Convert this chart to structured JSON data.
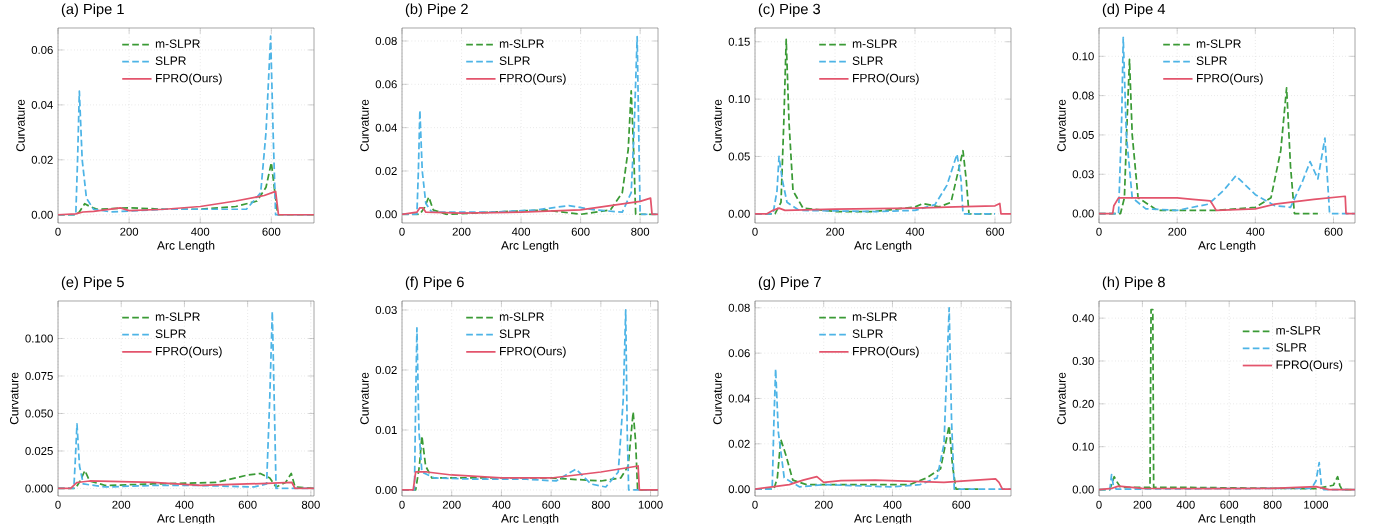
{
  "chart_data": [
    {
      "type": "line",
      "title": "(a) Pipe 1",
      "xlabel": "Arc Length",
      "ylabel": "Curvature",
      "grid": true,
      "legend": "top",
      "xlim": [
        0,
        720
      ],
      "xticks": [
        0,
        200,
        400,
        600
      ],
      "ylim": [
        -0.003,
        0.068
      ],
      "yticks": [
        {
          "value": 0,
          "label": "0.00"
        },
        {
          "value": 0.02,
          "label": "0.02"
        },
        {
          "value": 0.04,
          "label": "0.04"
        },
        {
          "value": 0.06,
          "label": "0.06"
        }
      ],
      "series": [
        {
          "name": "m-SLPR",
          "color": "#3a9a35",
          "line_style": "dashed",
          "x": [
            0,
            50,
            60,
            75,
            90,
            110,
            200,
            300,
            400,
            500,
            560,
            585,
            600,
            610,
            618,
            720
          ],
          "values": [
            0,
            0,
            0.001,
            0.004,
            0.003,
            0.002,
            0.0025,
            0.002,
            0.002,
            0.003,
            0.005,
            0.01,
            0.019,
            0.008,
            0,
            0
          ]
        },
        {
          "name": "SLPR",
          "color": "#4db4e6",
          "line_style": "dashed",
          "x": [
            0,
            50,
            55,
            60,
            68,
            80,
            100,
            150,
            300,
            450,
            530,
            570,
            585,
            598,
            605,
            612,
            720
          ],
          "values": [
            0,
            0,
            0.02,
            0.045,
            0.02,
            0.006,
            0.002,
            0.001,
            0.002,
            0.002,
            0.002,
            0.008,
            0.03,
            0.065,
            0.03,
            0,
            0
          ]
        },
        {
          "name": "FPRO(Ours)",
          "color": "#e3546c",
          "line_style": "solid",
          "x": [
            0,
            50,
            70,
            100,
            175,
            200,
            300,
            400,
            500,
            580,
            612,
            620,
            720
          ],
          "values": [
            0,
            0.0003,
            0.001,
            0.0012,
            0.0025,
            0.0015,
            0.002,
            0.003,
            0.005,
            0.007,
            0.0085,
            0,
            0
          ]
        }
      ]
    },
    {
      "type": "line",
      "title": "(b) Pipe 2",
      "xlabel": "Arc Length",
      "ylabel": "Curvature",
      "grid": true,
      "legend": "top",
      "xlim": [
        0,
        860
      ],
      "xticks": [
        0,
        200,
        400,
        600,
        800
      ],
      "ylim": [
        -0.004,
        0.086
      ],
      "yticks": [
        {
          "value": 0,
          "label": "0.00"
        },
        {
          "value": 0.02,
          "label": "0.02"
        },
        {
          "value": 0.04,
          "label": "0.04"
        },
        {
          "value": 0.06,
          "label": "0.06"
        },
        {
          "value": 0.08,
          "label": "0.08"
        }
      ],
      "series": [
        {
          "name": "m-SLPR",
          "color": "#3a9a35",
          "line_style": "dashed",
          "x": [
            0,
            60,
            75,
            90,
            105,
            150,
            300,
            480,
            600,
            700,
            740,
            760,
            770,
            778,
            785,
            860
          ],
          "values": [
            0,
            0,
            0.003,
            0.008,
            0.002,
            0,
            0.001,
            0.002,
            0,
            0.002,
            0.01,
            0.03,
            0.057,
            0.03,
            0,
            0
          ]
        },
        {
          "name": "SLPR",
          "color": "#4db4e6",
          "line_style": "dashed",
          "x": [
            0,
            50,
            55,
            60,
            68,
            80,
            100,
            300,
            450,
            560,
            650,
            740,
            770,
            780,
            790,
            795,
            800,
            860
          ],
          "values": [
            0,
            0,
            0.02,
            0.048,
            0.02,
            0.005,
            0.001,
            0.001,
            0.002,
            0.004,
            0.002,
            0.001,
            0.01,
            0.04,
            0.082,
            0.04,
            0,
            0
          ]
        },
        {
          "name": "FPRO(Ours)",
          "color": "#e3546c",
          "line_style": "solid",
          "x": [
            0,
            50,
            60,
            70,
            80,
            200,
            400,
            600,
            700,
            800,
            835,
            840,
            860
          ],
          "values": [
            0,
            0.001,
            0.003,
            0.003,
            0.001,
            0.0005,
            0.001,
            0.002,
            0.004,
            0.006,
            0.0075,
            0,
            0
          ]
        }
      ]
    },
    {
      "type": "line",
      "title": "(c) Pipe 3",
      "xlabel": "Arc Length",
      "ylabel": "Curvature",
      "grid": true,
      "legend": "top",
      "xlim": [
        0,
        640
      ],
      "xticks": [
        0,
        200,
        400,
        600
      ],
      "ylim": [
        -0.008,
        0.162
      ],
      "yticks": [
        {
          "value": 0,
          "label": "0.00"
        },
        {
          "value": 0.05,
          "label": "0.05"
        },
        {
          "value": 0.1,
          "label": "0.10"
        },
        {
          "value": 0.15,
          "label": "0.15"
        }
      ],
      "series": [
        {
          "name": "m-SLPR",
          "color": "#3a9a35",
          "line_style": "dashed",
          "x": [
            0,
            50,
            65,
            72,
            78,
            85,
            95,
            120,
            200,
            300,
            400,
            420,
            460,
            490,
            510,
            520,
            528,
            535,
            600
          ],
          "values": [
            0,
            0,
            0.01,
            0.08,
            0.152,
            0.08,
            0.02,
            0.005,
            0.002,
            0.002,
            0.006,
            0.009,
            0.006,
            0.01,
            0.04,
            0.055,
            0.03,
            0,
            0
          ]
        },
        {
          "name": "SLPR",
          "color": "#4db4e6",
          "line_style": "dashed",
          "x": [
            0,
            45,
            55,
            60,
            68,
            80,
            110,
            300,
            400,
            450,
            480,
            505,
            515,
            520,
            600
          ],
          "values": [
            0,
            0,
            0.02,
            0.05,
            0.03,
            0.01,
            0.003,
            0.002,
            0.003,
            0.008,
            0.025,
            0.052,
            0.03,
            0,
            0
          ]
        },
        {
          "name": "FPRO(Ours)",
          "color": "#e3546c",
          "line_style": "solid",
          "x": [
            0,
            30,
            45,
            60,
            75,
            200,
            400,
            500,
            600,
            612,
            615,
            640
          ],
          "values": [
            0,
            0,
            0.003,
            0.005,
            0.003,
            0.004,
            0.005,
            0.006,
            0.007,
            0.009,
            0,
            0
          ]
        }
      ]
    },
    {
      "type": "line",
      "title": "(d) Pipe 4",
      "xlabel": "Arc Length",
      "ylabel": "Curvature",
      "grid": true,
      "legend": "top",
      "xlim": [
        0,
        655
      ],
      "xticks": [
        0,
        200,
        400,
        600
      ],
      "ylim": [
        -0.006,
        0.118
      ],
      "yticks": [
        {
          "value": 0,
          "label": "0.00"
        },
        {
          "value": 0.025,
          "label": "0.03"
        },
        {
          "value": 0.05,
          "label": "0.05"
        },
        {
          "value": 0.075,
          "label": "0.08"
        },
        {
          "value": 0.1,
          "label": "0.10"
        }
      ],
      "series": [
        {
          "name": "m-SLPR",
          "color": "#3a9a35",
          "line_style": "dashed",
          "x": [
            0,
            55,
            65,
            72,
            78,
            85,
            100,
            150,
            300,
            400,
            440,
            465,
            480,
            490,
            500,
            560
          ],
          "values": [
            0,
            0,
            0.01,
            0.06,
            0.098,
            0.05,
            0.01,
            0.002,
            0.002,
            0.004,
            0.01,
            0.04,
            0.08,
            0.03,
            0,
            0
          ]
        },
        {
          "name": "SLPR",
          "color": "#4db4e6",
          "line_style": "dashed",
          "x": [
            0,
            50,
            58,
            62,
            70,
            85,
            120,
            200,
            280,
            320,
            350,
            400,
            450,
            490,
            520,
            540,
            560,
            578,
            590,
            655
          ],
          "values": [
            0,
            0,
            0.06,
            0.112,
            0.05,
            0.01,
            0.003,
            0.002,
            0.006,
            0.015,
            0.024,
            0.012,
            0.005,
            0.004,
            0.02,
            0.033,
            0.022,
            0.048,
            0,
            0
          ]
        },
        {
          "name": "FPRO(Ours)",
          "color": "#e3546c",
          "line_style": "solid",
          "x": [
            0,
            35,
            38,
            50,
            200,
            240,
            285,
            300,
            400,
            450,
            550,
            630,
            632,
            655
          ],
          "values": [
            0,
            0,
            0.005,
            0.01,
            0.01,
            0.009,
            0.008,
            0.002,
            0.003,
            0.006,
            0.009,
            0.011,
            0,
            0
          ]
        }
      ]
    },
    {
      "type": "line",
      "title": "(e) Pipe 5",
      "xlabel": "Arc Length",
      "ylabel": "Curvature",
      "grid": true,
      "legend": "top",
      "xlim": [
        0,
        810
      ],
      "xticks": [
        0,
        200,
        400,
        600,
        800
      ],
      "ylim": [
        -0.005,
        0.125
      ],
      "yticks": [
        {
          "value": 0,
          "label": "0.000"
        },
        {
          "value": 0.025,
          "label": "0.025"
        },
        {
          "value": 0.05,
          "label": "0.050"
        },
        {
          "value": 0.075,
          "label": "0.075"
        },
        {
          "value": 0.1,
          "label": "0.100"
        }
      ],
      "series": [
        {
          "name": "m-SLPR",
          "color": "#3a9a35",
          "line_style": "dashed",
          "x": [
            0,
            55,
            70,
            85,
            100,
            150,
            300,
            500,
            600,
            640,
            670,
            690,
            720,
            738,
            750,
            810
          ],
          "values": [
            0,
            0,
            0.005,
            0.012,
            0.005,
            0.002,
            0.003,
            0.004,
            0.009,
            0.01,
            0.007,
            0.001,
            0.004,
            0.01,
            0.001,
            0
          ]
        },
        {
          "name": "SLPR",
          "color": "#4db4e6",
          "line_style": "dashed",
          "x": [
            0,
            50,
            55,
            60,
            68,
            80,
            150,
            300,
            450,
            620,
            660,
            670,
            678,
            685,
            690,
            810
          ],
          "values": [
            0,
            0,
            0.02,
            0.043,
            0.015,
            0.003,
            0.001,
            0.002,
            0.002,
            0.001,
            0.003,
            0.06,
            0.118,
            0.05,
            0,
            0
          ]
        },
        {
          "name": "FPRO(Ours)",
          "color": "#e3546c",
          "line_style": "solid",
          "x": [
            0,
            40,
            60,
            100,
            300,
            450,
            600,
            740,
            750,
            810
          ],
          "values": [
            0,
            0,
            0.004,
            0.005,
            0.004,
            0.002,
            0.003,
            0.004,
            0,
            0
          ]
        }
      ]
    },
    {
      "type": "line",
      "title": "(f) Pipe 6",
      "xlabel": "Arc Length",
      "ylabel": "Curvature",
      "grid": true,
      "legend": "top",
      "xlim": [
        0,
        1030
      ],
      "xticks": [
        0,
        200,
        400,
        600,
        800,
        1000
      ],
      "ylim": [
        -0.001,
        0.0315
      ],
      "yticks": [
        {
          "value": 0,
          "label": "0.00"
        },
        {
          "value": 0.01,
          "label": "0.01"
        },
        {
          "value": 0.02,
          "label": "0.02"
        },
        {
          "value": 0.03,
          "label": "0.03"
        }
      ],
      "series": [
        {
          "name": "m-SLPR",
          "color": "#3a9a35",
          "line_style": "dashed",
          "x": [
            0,
            55,
            70,
            80,
            95,
            120,
            300,
            600,
            800,
            880,
            910,
            930,
            940,
            948,
            1030
          ],
          "values": [
            0,
            0,
            0.004,
            0.009,
            0.004,
            0.002,
            0.002,
            0.002,
            0.0015,
            0.002,
            0.004,
            0.013,
            0.008,
            0,
            0
          ]
        },
        {
          "name": "SLPR",
          "color": "#4db4e6",
          "line_style": "dashed",
          "x": [
            0,
            50,
            55,
            60,
            68,
            80,
            130,
            300,
            500,
            620,
            700,
            760,
            820,
            870,
            890,
            900,
            906,
            912,
            1030
          ],
          "values": [
            0,
            0,
            0.015,
            0.027,
            0.01,
            0.003,
            0.002,
            0.0018,
            0.0018,
            0.0015,
            0.0035,
            0.001,
            0.0005,
            0.003,
            0.015,
            0.03,
            0.01,
            0,
            0
          ]
        },
        {
          "name": "FPRO(Ours)",
          "color": "#e3546c",
          "line_style": "solid",
          "x": [
            0,
            45,
            55,
            100,
            200,
            400,
            600,
            800,
            950,
            955,
            1030
          ],
          "values": [
            0,
            0,
            0.003,
            0.003,
            0.0025,
            0.002,
            0.002,
            0.003,
            0.004,
            0,
            0
          ]
        }
      ]
    },
    {
      "type": "line",
      "title": "(g) Pipe 7",
      "xlabel": "Arc Length",
      "ylabel": "Curvature",
      "grid": true,
      "legend": "top",
      "xlim": [
        0,
        745
      ],
      "xticks": [
        0,
        200,
        400,
        600
      ],
      "ylim": [
        -0.003,
        0.083
      ],
      "yticks": [
        {
          "value": 0,
          "label": "0.00"
        },
        {
          "value": 0.02,
          "label": "0.02"
        },
        {
          "value": 0.04,
          "label": "0.04"
        },
        {
          "value": 0.06,
          "label": "0.06"
        },
        {
          "value": 0.08,
          "label": "0.08"
        }
      ],
      "series": [
        {
          "name": "m-SLPR",
          "color": "#3a9a35",
          "line_style": "dashed",
          "x": [
            0,
            55,
            65,
            75,
            90,
            110,
            150,
            300,
            450,
            500,
            540,
            565,
            575,
            585,
            650
          ],
          "values": [
            0,
            0,
            0.005,
            0.022,
            0.015,
            0.004,
            0.002,
            0.002,
            0.002,
            0.005,
            0.009,
            0.028,
            0.01,
            0,
            0
          ]
        },
        {
          "name": "SLPR",
          "color": "#4db4e6",
          "line_style": "dashed",
          "x": [
            0,
            50,
            55,
            60,
            68,
            85,
            130,
            200,
            400,
            480,
            530,
            550,
            560,
            565,
            572,
            580,
            745
          ],
          "values": [
            0,
            0,
            0.03,
            0.053,
            0.025,
            0.005,
            0.001,
            0.002,
            0.001,
            0.002,
            0.005,
            0.02,
            0.06,
            0.08,
            0.03,
            0,
            0
          ]
        },
        {
          "name": "FPRO(Ours)",
          "color": "#e3546c",
          "line_style": "solid",
          "x": [
            0,
            50,
            100,
            140,
            180,
            200,
            250,
            350,
            450,
            550,
            600,
            700,
            710,
            720,
            745
          ],
          "values": [
            0,
            0.001,
            0.002,
            0.004,
            0.0055,
            0.003,
            0.0038,
            0.004,
            0.0035,
            0.003,
            0.0035,
            0.0045,
            0.003,
            0,
            0
          ]
        }
      ]
    },
    {
      "type": "line",
      "title": "(h) Pipe 8",
      "xlabel": "Arc Length",
      "ylabel": "Curvature",
      "grid": true,
      "legend": "top right",
      "xlim": [
        0,
        1180
      ],
      "xticks": [
        0,
        200,
        400,
        600,
        800,
        1000
      ],
      "ylim": [
        -0.015,
        0.44
      ],
      "yticks": [
        {
          "value": 0,
          "label": "0.00"
        },
        {
          "value": 0.1,
          "label": "0.10"
        },
        {
          "value": 0.2,
          "label": "0.20"
        },
        {
          "value": 0.3,
          "label": "0.30"
        },
        {
          "value": 0.4,
          "label": "0.40"
        }
      ],
      "series": [
        {
          "name": "m-SLPR",
          "color": "#3a9a35",
          "line_style": "dashed",
          "x": [
            0,
            50,
            70,
            80,
            100,
            235,
            240,
            248,
            252,
            400,
            1000,
            1080,
            1100,
            1110,
            1120,
            1180
          ],
          "values": [
            0,
            0,
            0.03,
            0.02,
            0.005,
            0.005,
            0.42,
            0.42,
            0.005,
            0.005,
            0.002,
            0.01,
            0.03,
            0.01,
            0,
            0
          ]
        },
        {
          "name": "SLPR",
          "color": "#4db4e6",
          "line_style": "dashed",
          "x": [
            0,
            50,
            58,
            66,
            80,
            500,
            980,
            1000,
            1015,
            1025,
            1035,
            1180
          ],
          "values": [
            0,
            0,
            0.035,
            0.01,
            0.001,
            0.002,
            0.003,
            0.02,
            0.063,
            0.01,
            0,
            0
          ]
        },
        {
          "name": "FPRO(Ours)",
          "color": "#e3546c",
          "line_style": "solid",
          "x": [
            0,
            60,
            90,
            200,
            500,
            800,
            1000,
            1060,
            1180
          ],
          "values": [
            0,
            0.003,
            0.008,
            0.003,
            0.002,
            0.003,
            0.007,
            0,
            0
          ]
        }
      ]
    }
  ]
}
